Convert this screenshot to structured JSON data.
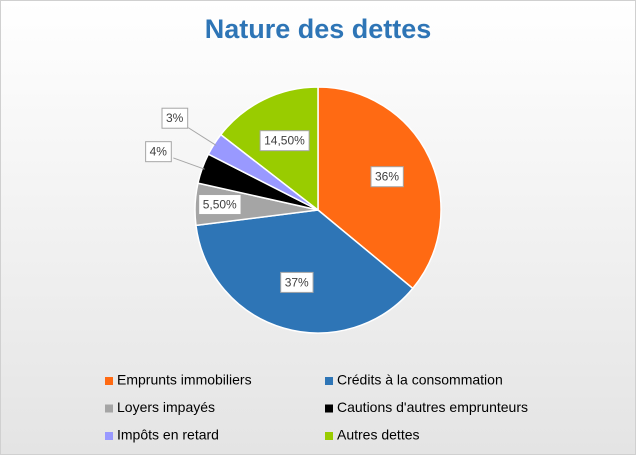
{
  "chart_data": {
    "type": "pie",
    "title": "Nature des dettes",
    "categories": [
      "Emprunts immobiliers",
      "Crédits à la consommation",
      "Loyers impayés",
      "Cautions d'autres emprunteurs",
      "Impôts en retard",
      "Autres dettes"
    ],
    "values": [
      36,
      37,
      5.5,
      4,
      3,
      14.5
    ],
    "value_labels": [
      "36%",
      "37%",
      "5,50%",
      "4%",
      "3%",
      "14,50%"
    ],
    "colors": [
      "#ff6a13",
      "#2e75b6",
      "#a5a5a5",
      "#000000",
      "#9999ff",
      "#99cc00"
    ]
  }
}
